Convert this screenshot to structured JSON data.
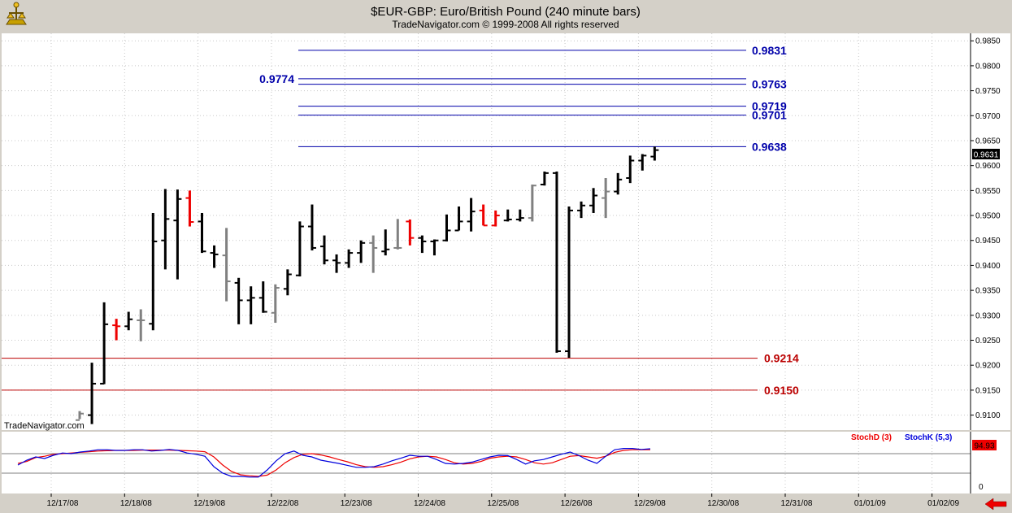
{
  "header": {
    "title": "$EUR-GBP:  Euro/British Pound  (240 minute bars)",
    "subtitle": "TradeNavigator.com © 1999-2008 All rights reserved",
    "logo_icon": "trade-navigator-logo-icon"
  },
  "watermark": "TradeNavigator.com",
  "colors": {
    "background": "#ffffff",
    "frame": "#d4d0c8",
    "bar_black": "#000000",
    "bar_gray": "#808080",
    "bar_red": "#ee0000",
    "level_blue": "#0000aa",
    "level_red": "#bb0000",
    "stoch_d": "#ee0000",
    "stoch_k": "#0000dd"
  },
  "chart_data": [
    {
      "type": "ohlc",
      "title": "$EUR-GBP:  Euro/British Pound  (240 minute bars)",
      "x_labels": [
        "12/17/08",
        "12/18/08",
        "12/19/08",
        "12/22/08",
        "12/23/08",
        "12/24/08",
        "12/25/08",
        "12/26/08",
        "12/29/08",
        "12/30/08",
        "12/31/08",
        "01/01/09",
        "01/02/09"
      ],
      "y_ticks": [
        "0.9850",
        "0.9800",
        "0.9750",
        "0.9700",
        "0.9650",
        "0.9600",
        "0.9550",
        "0.9500",
        "0.9450",
        "0.9400",
        "0.9350",
        "0.9300",
        "0.9250",
        "0.9200",
        "0.9150",
        "0.9100"
      ],
      "ylim": [
        0.907,
        0.9865
      ],
      "grid": true,
      "last_price": "0.9631",
      "bars": [
        {
          "x": 0,
          "o": 0.909,
          "h": 0.9108,
          "l": 0.9092,
          "c": 0.9103,
          "color": "gray"
        },
        {
          "x": 1,
          "o": 0.91,
          "h": 0.9205,
          "l": 0.9082,
          "c": 0.9163,
          "color": "black"
        },
        {
          "x": 2,
          "o": 0.9163,
          "h": 0.9326,
          "l": 0.9162,
          "c": 0.9282,
          "color": "black"
        },
        {
          "x": 3,
          "o": 0.928,
          "h": 0.9293,
          "l": 0.925,
          "c": 0.9278,
          "color": "red"
        },
        {
          "x": 4,
          "o": 0.9278,
          "h": 0.9307,
          "l": 0.927,
          "c": 0.9292,
          "color": "black"
        },
        {
          "x": 5,
          "o": 0.929,
          "h": 0.9312,
          "l": 0.9248,
          "c": 0.929,
          "color": "gray"
        },
        {
          "x": 6,
          "o": 0.9283,
          "h": 0.9505,
          "l": 0.927,
          "c": 0.9448,
          "color": "black"
        },
        {
          "x": 7,
          "o": 0.945,
          "h": 0.9553,
          "l": 0.9392,
          "c": 0.9493,
          "color": "black"
        },
        {
          "x": 8,
          "o": 0.949,
          "h": 0.9552,
          "l": 0.9372,
          "c": 0.9533,
          "color": "black"
        },
        {
          "x": 9,
          "o": 0.9535,
          "h": 0.955,
          "l": 0.9478,
          "c": 0.9487,
          "color": "red"
        },
        {
          "x": 10,
          "o": 0.9488,
          "h": 0.9505,
          "l": 0.9425,
          "c": 0.9428,
          "color": "black"
        },
        {
          "x": 11,
          "o": 0.9425,
          "h": 0.944,
          "l": 0.9395,
          "c": 0.9422,
          "color": "black"
        },
        {
          "x": 12,
          "o": 0.942,
          "h": 0.9475,
          "l": 0.9328,
          "c": 0.9368,
          "color": "gray"
        },
        {
          "x": 13,
          "o": 0.9365,
          "h": 0.9375,
          "l": 0.9282,
          "c": 0.933,
          "color": "black"
        },
        {
          "x": 14,
          "o": 0.933,
          "h": 0.9358,
          "l": 0.9282,
          "c": 0.9335,
          "color": "black"
        },
        {
          "x": 15,
          "o": 0.9335,
          "h": 0.9368,
          "l": 0.9305,
          "c": 0.9307,
          "color": "black"
        },
        {
          "x": 16,
          "o": 0.9305,
          "h": 0.9362,
          "l": 0.9285,
          "c": 0.9355,
          "color": "gray"
        },
        {
          "x": 17,
          "o": 0.9353,
          "h": 0.9392,
          "l": 0.934,
          "c": 0.9382,
          "color": "black"
        },
        {
          "x": 18,
          "o": 0.938,
          "h": 0.9488,
          "l": 0.9378,
          "c": 0.9478,
          "color": "black"
        },
        {
          "x": 19,
          "o": 0.9478,
          "h": 0.9522,
          "l": 0.943,
          "c": 0.9435,
          "color": "black"
        },
        {
          "x": 20,
          "o": 0.9438,
          "h": 0.946,
          "l": 0.9402,
          "c": 0.941,
          "color": "black"
        },
        {
          "x": 21,
          "o": 0.941,
          "h": 0.9422,
          "l": 0.9385,
          "c": 0.9405,
          "color": "black"
        },
        {
          "x": 22,
          "o": 0.9405,
          "h": 0.9432,
          "l": 0.9395,
          "c": 0.9425,
          "color": "black"
        },
        {
          "x": 23,
          "o": 0.9425,
          "h": 0.945,
          "l": 0.9405,
          "c": 0.9445,
          "color": "black"
        },
        {
          "x": 24,
          "o": 0.9445,
          "h": 0.946,
          "l": 0.9385,
          "c": 0.9435,
          "color": "gray"
        },
        {
          "x": 25,
          "o": 0.9428,
          "h": 0.9472,
          "l": 0.942,
          "c": 0.9432,
          "color": "black"
        },
        {
          "x": 26,
          "o": 0.9435,
          "h": 0.9493,
          "l": 0.9432,
          "c": 0.9435,
          "color": "gray"
        },
        {
          "x": 27,
          "o": 0.9488,
          "h": 0.9492,
          "l": 0.944,
          "c": 0.9455,
          "color": "red"
        },
        {
          "x": 28,
          "o": 0.9455,
          "h": 0.946,
          "l": 0.9425,
          "c": 0.9448,
          "color": "black"
        },
        {
          "x": 29,
          "o": 0.9448,
          "h": 0.9452,
          "l": 0.942,
          "c": 0.945,
          "color": "black"
        },
        {
          "x": 30,
          "o": 0.945,
          "h": 0.9502,
          "l": 0.9448,
          "c": 0.947,
          "color": "black"
        },
        {
          "x": 31,
          "o": 0.947,
          "h": 0.9518,
          "l": 0.947,
          "c": 0.9488,
          "color": "black"
        },
        {
          "x": 32,
          "o": 0.9488,
          "h": 0.9535,
          "l": 0.9468,
          "c": 0.9508,
          "color": "black"
        },
        {
          "x": 33,
          "o": 0.951,
          "h": 0.9522,
          "l": 0.948,
          "c": 0.948,
          "color": "red"
        },
        {
          "x": 34,
          "o": 0.948,
          "h": 0.951,
          "l": 0.9478,
          "c": 0.95,
          "color": "red"
        },
        {
          "x": 35,
          "o": 0.949,
          "h": 0.9512,
          "l": 0.9488,
          "c": 0.9492,
          "color": "black"
        },
        {
          "x": 36,
          "o": 0.9492,
          "h": 0.9512,
          "l": 0.9488,
          "c": 0.9495,
          "color": "black"
        },
        {
          "x": 37,
          "o": 0.9495,
          "h": 0.9562,
          "l": 0.9488,
          "c": 0.956,
          "color": "gray"
        },
        {
          "x": 38,
          "o": 0.9562,
          "h": 0.9588,
          "l": 0.956,
          "c": 0.9585,
          "color": "black"
        },
        {
          "x": 39,
          "o": 0.9585,
          "h": 0.9588,
          "l": 0.9225,
          "c": 0.9228,
          "color": "black"
        },
        {
          "x": 40,
          "o": 0.9228,
          "h": 0.9518,
          "l": 0.9215,
          "c": 0.951,
          "color": "black"
        },
        {
          "x": 41,
          "o": 0.951,
          "h": 0.9528,
          "l": 0.9495,
          "c": 0.952,
          "color": "black"
        },
        {
          "x": 42,
          "o": 0.952,
          "h": 0.9555,
          "l": 0.9505,
          "c": 0.954,
          "color": "black"
        },
        {
          "x": 43,
          "o": 0.9535,
          "h": 0.9575,
          "l": 0.9495,
          "c": 0.9548,
          "color": "gray"
        },
        {
          "x": 44,
          "o": 0.9548,
          "h": 0.9585,
          "l": 0.9542,
          "c": 0.9572,
          "color": "black"
        },
        {
          "x": 45,
          "o": 0.9575,
          "h": 0.962,
          "l": 0.9565,
          "c": 0.961,
          "color": "black"
        },
        {
          "x": 46,
          "o": 0.961,
          "h": 0.9623,
          "l": 0.959,
          "c": 0.962,
          "color": "black"
        },
        {
          "x": 47,
          "o": 0.9618,
          "h": 0.9638,
          "l": 0.961,
          "c": 0.9631,
          "color": "black"
        }
      ],
      "levels": [
        {
          "value": "0.9831",
          "color": "blue",
          "label_side": "right"
        },
        {
          "value": "0.9774",
          "color": "blue",
          "label_side": "left"
        },
        {
          "value": "0.9763",
          "color": "blue",
          "label_side": "right"
        },
        {
          "value": "0.9719",
          "color": "blue",
          "label_side": "right"
        },
        {
          "value": "0.9701",
          "color": "blue",
          "label_side": "right"
        },
        {
          "value": "0.9638",
          "color": "blue",
          "label_side": "right"
        },
        {
          "value": "0.9214",
          "color": "red",
          "label_side": "right"
        },
        {
          "value": "0.9150",
          "color": "red",
          "label_side": "right"
        }
      ]
    },
    {
      "type": "line",
      "ylim": [
        0,
        100
      ],
      "y_ticks": [
        "0"
      ],
      "last_value": "94.93",
      "legend": [
        "StochD (3)",
        "StochK (5,3)"
      ],
      "series": [
        {
          "name": "StochD (3)",
          "color": "#ee0000",
          "values": [
            50,
            56,
            68,
            72,
            78,
            80,
            82,
            84,
            86,
            88,
            89,
            90,
            90,
            90,
            91,
            91,
            91,
            91,
            90,
            89,
            88,
            86,
            70,
            45,
            25,
            15,
            12,
            10,
            14,
            30,
            52,
            68,
            78,
            80,
            76,
            70,
            62,
            55,
            46,
            40,
            38,
            40,
            46,
            54,
            64,
            70,
            72,
            70,
            62,
            52,
            48,
            50,
            56,
            66,
            70,
            72,
            70,
            62,
            52,
            48,
            52,
            62,
            72,
            74,
            70,
            66,
            72,
            84,
            90,
            92,
            92,
            92
          ]
        },
        {
          "name": "StochK (5,3)",
          "color": "#0000dd",
          "values": [
            45,
            60,
            70,
            65,
            75,
            82,
            80,
            85,
            88,
            92,
            92,
            90,
            90,
            92,
            92,
            88,
            90,
            93,
            90,
            82,
            78,
            72,
            40,
            20,
            10,
            10,
            8,
            8,
            30,
            58,
            80,
            88,
            75,
            70,
            60,
            55,
            50,
            44,
            38,
            38,
            40,
            48,
            58,
            66,
            75,
            72,
            72,
            62,
            50,
            48,
            50,
            54,
            62,
            70,
            75,
            74,
            62,
            48,
            58,
            62,
            70,
            78,
            85,
            74,
            60,
            50,
            72,
            92,
            96,
            96,
            93,
            95
          ]
        }
      ]
    }
  ]
}
